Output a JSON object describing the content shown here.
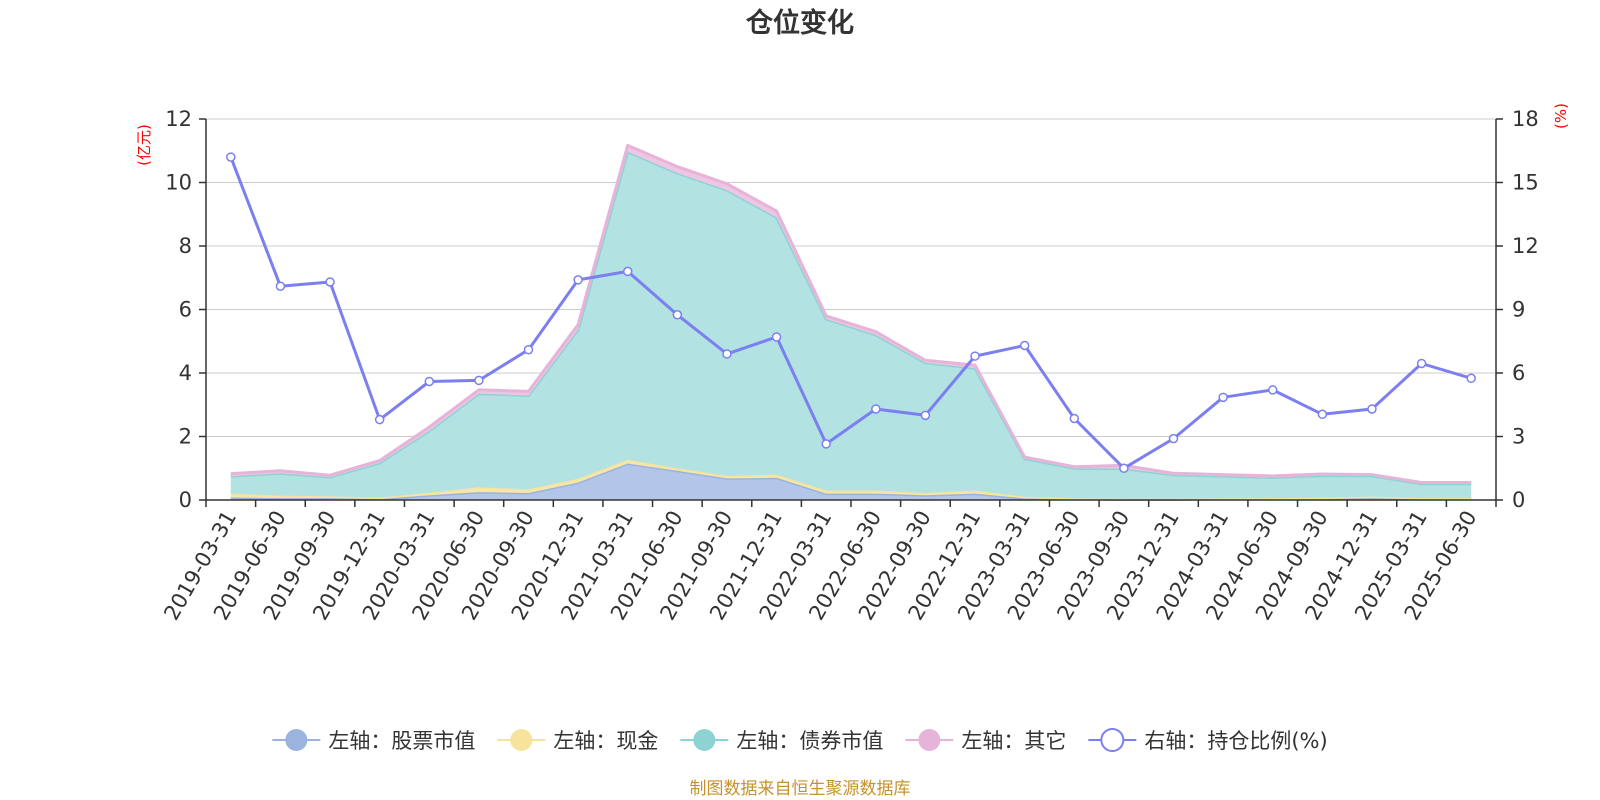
{
  "chart_data": {
    "type": "area",
    "title": "仓位变化",
    "left_unit": "(亿元)",
    "right_unit": "(%)",
    "source": "制图数据来自恒生聚源数据库",
    "ylim_left": [
      0,
      12
    ],
    "yticks_left": [
      0,
      2,
      4,
      6,
      8,
      10,
      12
    ],
    "ylim_right": [
      0,
      18
    ],
    "yticks_right": [
      0,
      3,
      6,
      9,
      12,
      15,
      18
    ],
    "grid": true,
    "legend_position": "bottom",
    "categories": [
      "2019-03-31",
      "2019-06-30",
      "2019-09-30",
      "2019-12-31",
      "2020-03-31",
      "2020-06-30",
      "2020-09-30",
      "2020-12-31",
      "2021-03-31",
      "2021-06-30",
      "2021-09-30",
      "2021-12-31",
      "2022-03-31",
      "2022-06-30",
      "2022-09-30",
      "2022-12-31",
      "2023-03-31",
      "2023-06-30",
      "2023-09-30",
      "2023-12-31",
      "2024-03-31",
      "2024-06-30",
      "2024-09-30",
      "2024-12-31",
      "2025-03-31",
      "2025-06-30"
    ],
    "stacked_series": [
      {
        "name": "左轴：股票市值",
        "color": "#9ab4df",
        "fill": "#b3c5e8",
        "values": [
          0.08,
          0.06,
          0.06,
          0.03,
          0.15,
          0.25,
          0.22,
          0.55,
          1.15,
          0.92,
          0.68,
          0.7,
          0.2,
          0.2,
          0.15,
          0.2,
          0.05,
          0.03,
          0.02,
          0.02,
          0.03,
          0.04,
          0.04,
          0.06,
          0.04,
          0.04
        ]
      },
      {
        "name": "左轴：现金",
        "color": "#f7e39c",
        "fill": "#f6e7a8",
        "values": [
          0.12,
          0.08,
          0.06,
          0.04,
          0.08,
          0.15,
          0.12,
          0.12,
          0.12,
          0.08,
          0.08,
          0.1,
          0.1,
          0.1,
          0.07,
          0.1,
          0.05,
          0.02,
          0.02,
          0.02,
          0.02,
          0.02,
          0.03,
          0.05,
          0.02,
          0.02
        ]
      },
      {
        "name": "左轴：债券市值",
        "color": "#8ed3d3",
        "fill": "#b3e2e2",
        "values": [
          0.55,
          0.7,
          0.6,
          1.1,
          1.95,
          2.95,
          2.95,
          4.7,
          9.7,
          9.3,
          9.0,
          8.1,
          5.4,
          4.9,
          4.1,
          3.85,
          1.2,
          0.95,
          0.95,
          0.75,
          0.7,
          0.65,
          0.7,
          0.65,
          0.45,
          0.45
        ]
      },
      {
        "name": "左轴：其它",
        "color": "#e7b4d9",
        "fill": "#eec5e3",
        "values": [
          0.08,
          0.08,
          0.06,
          0.07,
          0.12,
          0.12,
          0.13,
          0.15,
          0.2,
          0.2,
          0.2,
          0.2,
          0.1,
          0.1,
          0.08,
          0.1,
          0.05,
          0.05,
          0.1,
          0.05,
          0.05,
          0.05,
          0.05,
          0.04,
          0.04,
          0.04
        ]
      }
    ],
    "line_series": {
      "name": "右轴：持仓比例(%)",
      "color": "#7b7ff0",
      "values": [
        16.2,
        10.1,
        10.3,
        3.8,
        5.6,
        5.65,
        7.1,
        10.4,
        10.8,
        8.75,
        6.9,
        7.7,
        2.65,
        4.3,
        4.0,
        6.8,
        7.3,
        3.85,
        1.5,
        2.9,
        4.85,
        5.2,
        4.05,
        4.3,
        6.45,
        5.75
      ]
    }
  }
}
